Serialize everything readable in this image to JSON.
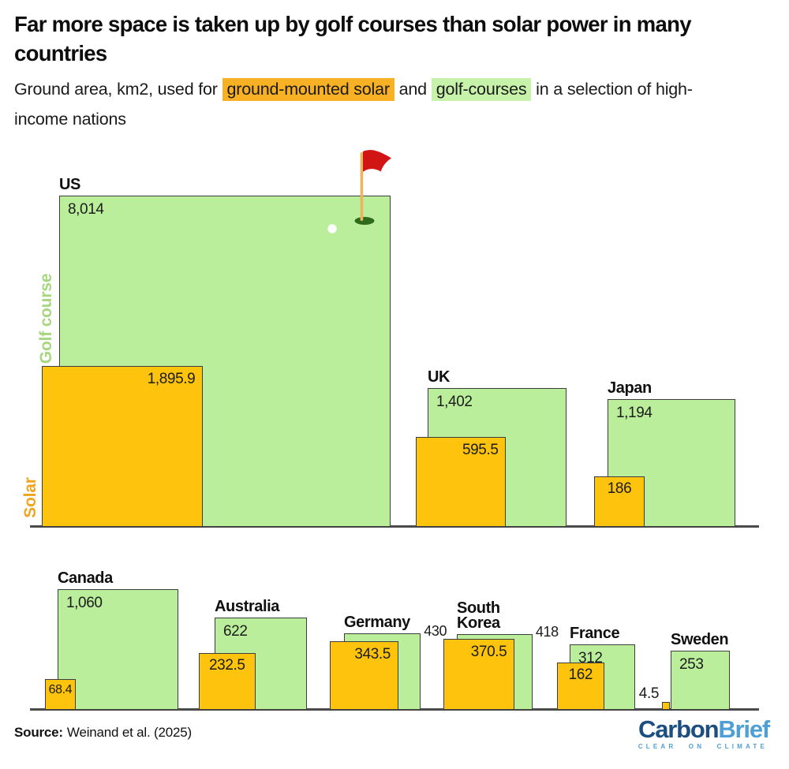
{
  "header": {
    "title": "Far more space is taken up by golf courses than solar power in many countries",
    "subtitle": {
      "pre": "Ground area, km2, used for ",
      "solar_highlight": "ground-mounted solar",
      "mid": " and ",
      "golf_highlight": "golf-courses",
      "post": " in a selection of high-income nations"
    }
  },
  "footer": {
    "source_label": "Source:",
    "source_text": "Weinand et al. (2025)",
    "logo": {
      "carbon": "Carbon",
      "brief": "Brief",
      "tagline": "CLEAR ON CLIMATE"
    }
  },
  "colors": {
    "golf_green": "#BAEE9B",
    "solar_orange": "#FDC30D",
    "square_border": "#3D3D3D",
    "highlight_solar_bg": "#F8B024",
    "highlight_golf_bg": "#C7F2A9",
    "golf_axis_label": "#A6D77E",
    "solar_axis_label": "#F0A51E",
    "axis_line": "#4B4B4B",
    "flag_red": "#D11414",
    "flag_pole": "#ECB45C",
    "hole_green": "#2E6B1C",
    "ball_white": "#FFFFFF",
    "logo_carbon_blue": "#1C4E80",
    "logo_brief_blue": "#4D9FD6"
  },
  "chart_data": {
    "type": "area-square-comparison",
    "title": "Far more space is taken up by golf courses than solar power in many countries",
    "unit": "km2",
    "series_labels": {
      "golf": "Golf course",
      "solar": "Solar"
    },
    "legend_position": "left-axis-rotated",
    "grid": false,
    "countries": [
      {
        "name": "US",
        "name_lines": [
          "US"
        ],
        "golf_km2": 8014,
        "golf_label": "8,014",
        "solar_km2": 1895.9,
        "solar_label": "1,895.9"
      },
      {
        "name": "UK",
        "name_lines": [
          "UK"
        ],
        "golf_km2": 1402,
        "golf_label": "1,402",
        "solar_km2": 595.5,
        "solar_label": "595.5"
      },
      {
        "name": "Japan",
        "name_lines": [
          "Japan"
        ],
        "golf_km2": 1194,
        "golf_label": "1,194",
        "solar_km2": 186,
        "solar_label": "186"
      },
      {
        "name": "Canada",
        "name_lines": [
          "Canada"
        ],
        "golf_km2": 1060,
        "golf_label": "1,060",
        "solar_km2": 68.4,
        "solar_label": "68.4"
      },
      {
        "name": "Australia",
        "name_lines": [
          "Australia"
        ],
        "golf_km2": 622,
        "golf_label": "622",
        "solar_km2": 232.5,
        "solar_label": "232.5"
      },
      {
        "name": "Germany",
        "name_lines": [
          "Germany"
        ],
        "golf_km2": 430,
        "golf_label": "430",
        "solar_km2": 343.5,
        "solar_label": "343.5"
      },
      {
        "name": "South Korea",
        "name_lines": [
          "South",
          "Korea"
        ],
        "golf_km2": 418,
        "golf_label": "418",
        "solar_km2": 370.5,
        "solar_label": "370.5"
      },
      {
        "name": "France",
        "name_lines": [
          "France"
        ],
        "golf_km2": 312,
        "golf_label": "312",
        "solar_km2": 162,
        "solar_label": "162"
      },
      {
        "name": "Sweden",
        "name_lines": [
          "Sweden"
        ],
        "golf_km2": 253,
        "golf_label": "253",
        "solar_km2": 4.5,
        "solar_label": "4.5"
      }
    ]
  }
}
